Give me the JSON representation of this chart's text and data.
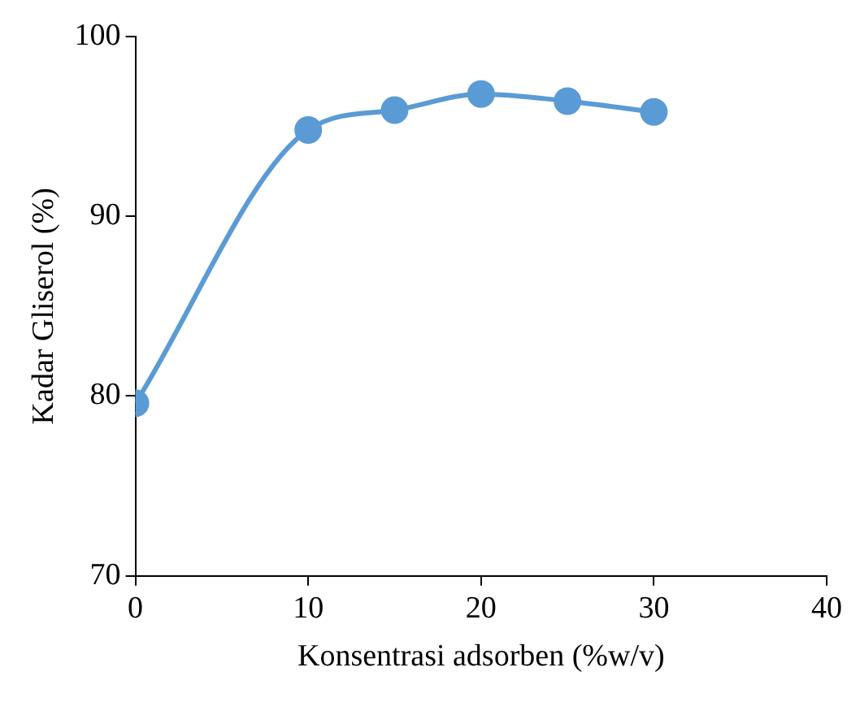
{
  "chart_data": {
    "type": "line",
    "xlabel": "Konsentrasi adsorben (%w/v)",
    "ylabel": "Kadar Gliserol (%)",
    "x": [
      0,
      10,
      15,
      20,
      25,
      30
    ],
    "series": [
      {
        "color": "#5b9bd5",
        "values": [
          79.6,
          94.8,
          95.9,
          96.8,
          96.4,
          95.8
        ]
      }
    ],
    "xlim": [
      0,
      40
    ],
    "xticks": [
      0,
      10,
      20,
      30,
      40
    ],
    "ylim": [
      70,
      100
    ],
    "yticks": [
      70,
      80,
      90,
      100
    ],
    "grid": false,
    "legend": false,
    "marker": "circle",
    "line_style": "solid"
  }
}
